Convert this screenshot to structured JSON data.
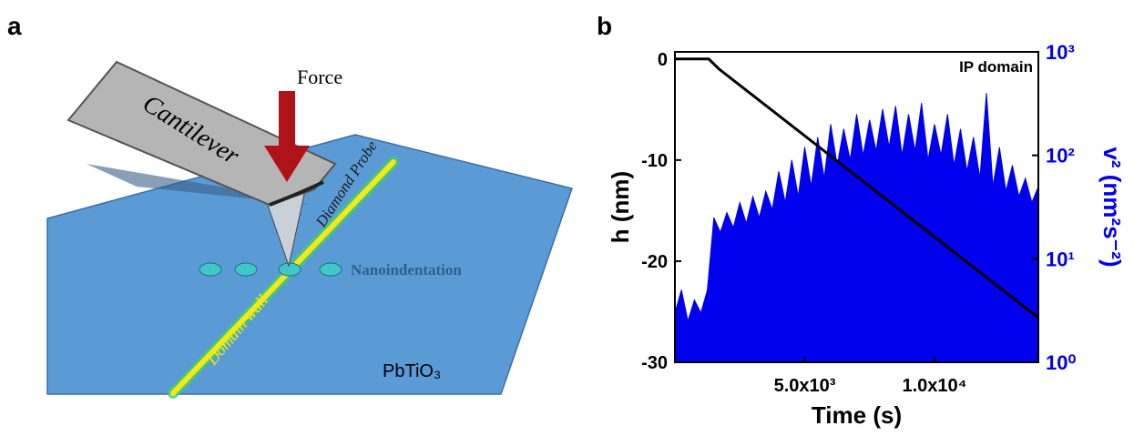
{
  "panel_a": {
    "label": "a",
    "force": "Force",
    "cantilever": "Cantilever",
    "probe": "Diamond Probe",
    "indentation": "Nanoindentation",
    "domain_wall": "Domain wall",
    "material": "PbTiO₃"
  },
  "chart_data": {
    "type": "line",
    "panel_label": "b",
    "xlabel": "Time (s)",
    "ylabel": "h (nm)",
    "y2label": "v² (nm²s⁻²)",
    "annotation": "IP domain",
    "xlim": [
      0,
      14000
    ],
    "xticks": [
      {
        "value": 5000,
        "label": "5.0x10³"
      },
      {
        "value": 10000,
        "label": "1.0x10⁴"
      }
    ],
    "ylim": [
      -30,
      0.7
    ],
    "yticks": [
      0,
      -10,
      -20,
      -30
    ],
    "y2lim": [
      1,
      1000
    ],
    "y2log": true,
    "y2ticks": [
      {
        "value": 1,
        "label": "10⁰"
      },
      {
        "value": 10,
        "label": "10¹"
      },
      {
        "value": 100,
        "label": "10²"
      },
      {
        "value": 1000,
        "label": "10³"
      }
    ],
    "series": [
      {
        "type": "line",
        "color": "#000000",
        "x": [
          0,
          1300,
          1700,
          14000
        ],
        "values": [
          0,
          0,
          -1,
          -25.6
        ]
      },
      {
        "type": "area",
        "axis": "y2",
        "color": "#0000ee",
        "x": [
          0,
          250,
          500,
          750,
          1000,
          1250,
          1500,
          1750,
          2000,
          2250,
          2500,
          2750,
          3000,
          3250,
          3500,
          3750,
          4000,
          4250,
          4500,
          4750,
          5000,
          5250,
          5500,
          5750,
          6000,
          6250,
          6500,
          6750,
          7000,
          7250,
          7500,
          7750,
          8000,
          8250,
          8500,
          8750,
          9000,
          9250,
          9500,
          9750,
          10000,
          10250,
          10500,
          10750,
          11000,
          11250,
          11500,
          11750,
          12000,
          12250,
          12500,
          12750,
          13000,
          13250,
          13500,
          13750,
          14000
        ],
        "values": [
          3,
          5,
          2.5,
          4,
          3,
          5,
          25,
          18,
          28,
          20,
          35,
          22,
          40,
          25,
          45,
          30,
          70,
          35,
          90,
          40,
          120,
          50,
          150,
          60,
          200,
          80,
          180,
          90,
          250,
          100,
          220,
          110,
          280,
          120,
          300,
          100,
          250,
          110,
          320,
          90,
          200,
          100,
          250,
          80,
          180,
          70,
          150,
          60,
          400,
          50,
          120,
          45,
          80,
          40,
          60,
          35,
          50
        ]
      }
    ]
  }
}
